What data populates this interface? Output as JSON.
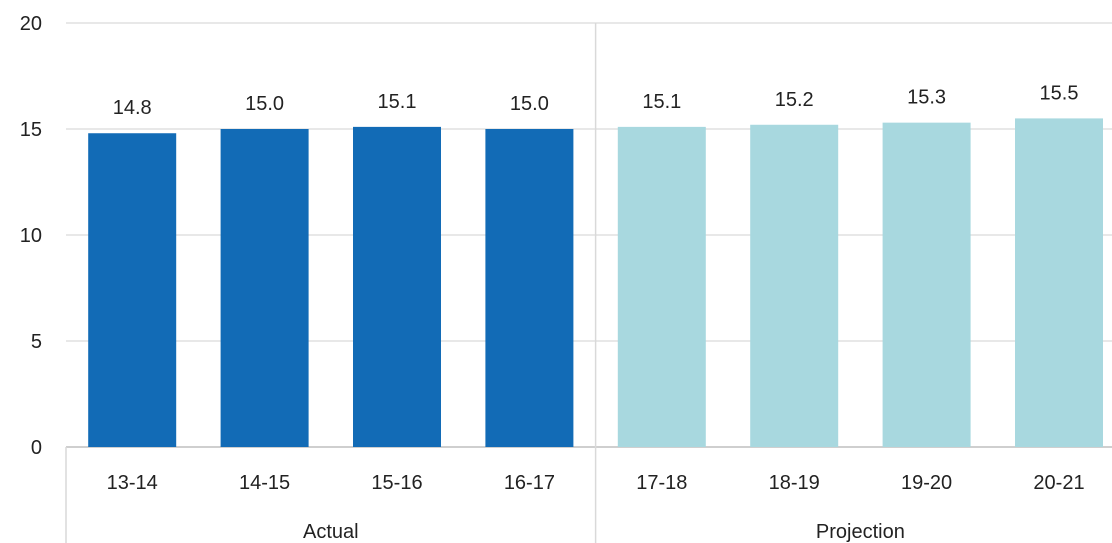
{
  "chart_data": {
    "type": "bar",
    "categories": [
      "13-14",
      "14-15",
      "15-16",
      "16-17",
      "17-18",
      "18-19",
      "19-20",
      "20-21"
    ],
    "values": [
      14.8,
      15.0,
      15.1,
      15.0,
      15.1,
      15.2,
      15.3,
      15.5
    ],
    "value_labels": [
      "14.8",
      "15.0",
      "15.1",
      "15.0",
      "15.1",
      "15.2",
      "15.3",
      "15.5"
    ],
    "groups": [
      {
        "name": "Actual",
        "categories": [
          "13-14",
          "14-15",
          "15-16",
          "16-17"
        ],
        "color": "#126bb6"
      },
      {
        "name": "Projection",
        "categories": [
          "17-18",
          "18-19",
          "19-20",
          "20-21"
        ],
        "color": "#a8d8df"
      }
    ],
    "ylim": [
      0,
      20
    ],
    "yticks": [
      "0",
      "5",
      "10",
      "15",
      "20"
    ],
    "grid": true,
    "legend": "none",
    "title": "",
    "xlabel": "",
    "ylabel": ""
  }
}
